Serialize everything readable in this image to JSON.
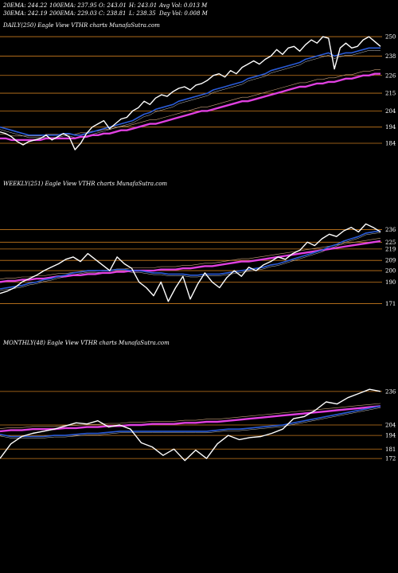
{
  "header": {
    "col1": [
      "20EMA: 244.22",
      "30EMA: 242.19"
    ],
    "col2": [
      "100EMA: 237.95",
      "200EMA: 229.03"
    ],
    "col3": [
      "O: 243.01",
      "C: 238.81"
    ],
    "col4": [
      "H: 243.01",
      "L: 238.35"
    ],
    "col5": [
      "Avg Vol: 0.013  M",
      "Day Vol: 0.008  M"
    ]
  },
  "colors": {
    "price": "#ffffff",
    "ema_blue": "#2a5bd7",
    "ema_magenta": "#e040e0",
    "grid": "#c87a1e",
    "ema_thin": "#c9a07a"
  },
  "chart_data": [
    {
      "type": "line",
      "label": "DAILY(250) Eagle   View  VTHR charts MunafaSutra.com",
      "ticks": [
        "250",
        "238",
        "226",
        "215",
        "204",
        "194",
        "184"
      ],
      "price": [
        191,
        190,
        188,
        185,
        183,
        185,
        186,
        187,
        189,
        186,
        188,
        190,
        188,
        180,
        184,
        190,
        194,
        196,
        198,
        193,
        196,
        199,
        200,
        204,
        206,
        210,
        208,
        212,
        214,
        213,
        216,
        218,
        219,
        217,
        220,
        221,
        223,
        226,
        227,
        225,
        229,
        227,
        231,
        233,
        235,
        233,
        236,
        238,
        242,
        239,
        243,
        244,
        241,
        245,
        248,
        246,
        250,
        249,
        230,
        243,
        246,
        243,
        244,
        248,
        250,
        247,
        244
      ],
      "ema_blue": [
        194,
        193,
        192,
        191,
        190,
        189,
        189,
        189,
        189,
        189,
        189,
        190,
        190,
        189,
        189,
        190,
        191,
        192,
        193,
        194,
        195,
        196,
        197,
        198,
        200,
        202,
        203,
        205,
        206,
        207,
        208,
        210,
        211,
        212,
        213,
        214,
        215,
        217,
        218,
        219,
        220,
        221,
        222,
        224,
        225,
        226,
        227,
        229,
        230,
        231,
        232,
        233,
        234,
        236,
        237,
        238,
        239,
        240,
        238,
        239,
        240,
        240,
        241,
        242,
        243,
        243,
        243
      ],
      "ema_magenta": [
        187,
        187,
        186,
        186,
        186,
        186,
        186,
        186,
        187,
        187,
        187,
        187,
        187,
        187,
        188,
        188,
        189,
        189,
        190,
        190,
        191,
        192,
        192,
        193,
        194,
        195,
        196,
        196,
        197,
        198,
        199,
        200,
        201,
        202,
        203,
        204,
        204,
        205,
        206,
        207,
        208,
        209,
        210,
        210,
        211,
        212,
        213,
        214,
        215,
        216,
        217,
        218,
        219,
        219,
        220,
        221,
        221,
        222,
        222,
        223,
        224,
        224,
        225,
        226,
        226,
        227,
        227
      ]
    },
    {
      "type": "line",
      "label": "WEEKLY(251) Eagle   View  VTHR charts MunafaSutra.com",
      "ticks": [
        "236",
        "225",
        "219",
        "209",
        "200",
        "190",
        "171"
      ],
      "price": [
        180,
        182,
        185,
        190,
        193,
        196,
        200,
        203,
        206,
        210,
        212,
        208,
        215,
        210,
        205,
        200,
        212,
        206,
        202,
        190,
        185,
        178,
        190,
        173,
        185,
        195,
        175,
        188,
        198,
        190,
        185,
        194,
        200,
        195,
        203,
        200,
        205,
        208,
        212,
        210,
        215,
        218,
        225,
        222,
        228,
        232,
        230,
        235,
        238,
        234,
        241,
        238,
        234
      ],
      "ema_blue": [
        184,
        185,
        186,
        187,
        189,
        190,
        192,
        193,
        195,
        196,
        198,
        199,
        200,
        200,
        200,
        200,
        201,
        201,
        200,
        200,
        199,
        198,
        198,
        197,
        197,
        197,
        196,
        196,
        197,
        197,
        197,
        198,
        199,
        200,
        201,
        202,
        203,
        205,
        206,
        208,
        210,
        212,
        214,
        216,
        218,
        221,
        223,
        226,
        228,
        230,
        233,
        234,
        235
      ],
      "ema_magenta": [
        190,
        191,
        191,
        192,
        192,
        193,
        193,
        194,
        195,
        195,
        196,
        196,
        197,
        197,
        198,
        198,
        199,
        199,
        200,
        200,
        200,
        200,
        201,
        201,
        201,
        202,
        202,
        203,
        204,
        204,
        205,
        206,
        207,
        208,
        208,
        209,
        210,
        211,
        212,
        213,
        214,
        215,
        216,
        217,
        218,
        219,
        220,
        221,
        222,
        223,
        224,
        225,
        226
      ]
    },
    {
      "type": "line",
      "label": "MONTHLY(48) Eagle   View  VTHR charts MunafaSutra.com",
      "ticks": [
        "236",
        "204",
        "194",
        "181",
        "172"
      ],
      "price": [
        172,
        186,
        193,
        196,
        198,
        200,
        203,
        206,
        205,
        208,
        202,
        204,
        200,
        187,
        183,
        175,
        181,
        170,
        180,
        172,
        186,
        194,
        190,
        192,
        193,
        196,
        200,
        210,
        212,
        218,
        226,
        224,
        230,
        234,
        238,
        236
      ],
      "ema_blue": [
        195,
        193,
        193,
        193,
        193,
        194,
        194,
        195,
        196,
        196,
        197,
        198,
        198,
        198,
        198,
        198,
        198,
        198,
        198,
        198,
        199,
        200,
        200,
        201,
        202,
        203,
        204,
        206,
        208,
        210,
        212,
        214,
        216,
        218,
        220,
        222
      ],
      "ema_magenta": [
        198,
        199,
        199,
        200,
        200,
        200,
        201,
        201,
        202,
        202,
        203,
        203,
        204,
        204,
        205,
        205,
        205,
        206,
        206,
        207,
        207,
        208,
        209,
        210,
        211,
        212,
        213,
        214,
        215,
        216,
        217,
        218,
        219,
        220,
        221,
        222
      ]
    }
  ]
}
